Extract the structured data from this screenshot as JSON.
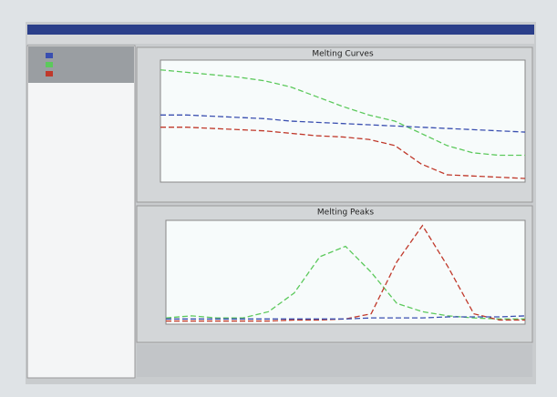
{
  "chart_data": [
    {
      "type": "line",
      "title": "Melting Curves",
      "x": [
        0,
        1,
        2,
        3,
        4,
        5,
        6,
        7,
        8,
        9,
        10,
        11,
        12,
        13,
        14
      ],
      "xlim": [
        0,
        14
      ],
      "ylim": [
        0,
        1
      ],
      "series": [
        {
          "color": "#5cc95c",
          "values": [
            0.92,
            0.9,
            0.88,
            0.86,
            0.83,
            0.78,
            0.7,
            0.62,
            0.55,
            0.5,
            0.4,
            0.3,
            0.24,
            0.22,
            0.22
          ]
        },
        {
          "color": "#3a4fb0",
          "values": [
            0.55,
            0.55,
            0.54,
            0.53,
            0.52,
            0.5,
            0.49,
            0.48,
            0.47,
            0.46,
            0.45,
            0.44,
            0.43,
            0.42,
            0.41
          ]
        },
        {
          "color": "#c0392b",
          "values": [
            0.45,
            0.45,
            0.44,
            0.43,
            0.42,
            0.4,
            0.38,
            0.37,
            0.35,
            0.3,
            0.15,
            0.06,
            0.05,
            0.04,
            0.03
          ]
        }
      ]
    },
    {
      "type": "line",
      "title": "Melting Peaks",
      "x": [
        0,
        1,
        2,
        3,
        4,
        5,
        6,
        7,
        8,
        9,
        10,
        11,
        12,
        13,
        14
      ],
      "xlim": [
        0,
        14
      ],
      "ylim": [
        0,
        1
      ],
      "series": [
        {
          "color": "#5cc95c",
          "values": [
            0.06,
            0.08,
            0.06,
            0.06,
            0.12,
            0.3,
            0.65,
            0.75,
            0.5,
            0.2,
            0.12,
            0.08,
            0.06,
            0.05,
            0.05
          ]
        },
        {
          "color": "#c0392b",
          "values": [
            0.03,
            0.03,
            0.03,
            0.03,
            0.03,
            0.04,
            0.04,
            0.05,
            0.1,
            0.6,
            0.95,
            0.55,
            0.1,
            0.04,
            0.04
          ]
        },
        {
          "color": "#3a4fb0",
          "values": [
            0.05,
            0.05,
            0.05,
            0.05,
            0.05,
            0.05,
            0.05,
            0.05,
            0.06,
            0.06,
            0.06,
            0.07,
            0.07,
            0.07,
            0.08
          ]
        }
      ]
    }
  ]
}
